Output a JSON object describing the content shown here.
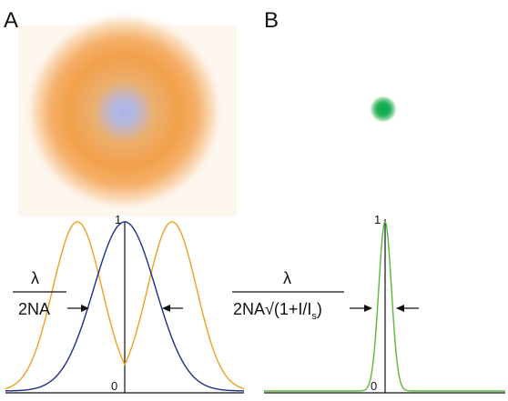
{
  "panels": {
    "a": {
      "letter": "A"
    },
    "b": {
      "letter": "B"
    }
  },
  "formulas": {
    "a": {
      "numerator": "λ",
      "denominator": "2NA"
    },
    "b": {
      "numerator": "λ",
      "denominator_main": "2NA√(1+I/I",
      "denominator_sub": "s",
      "denominator_close": ")"
    }
  },
  "ticks": {
    "a": {
      "top": "1",
      "bottom": "0"
    },
    "b": {
      "top": "1",
      "bottom": "0"
    }
  },
  "colors": {
    "excitation_orange": "#f0a030",
    "depletion_center_blue": "#a8b0e8",
    "emission_blue": "#1f2f86",
    "sted_green": "#10b050",
    "sted_curve_green": "#5cb83a",
    "axis": "#111111",
    "gaussian_curve_blue": "#1f2f86"
  }
}
